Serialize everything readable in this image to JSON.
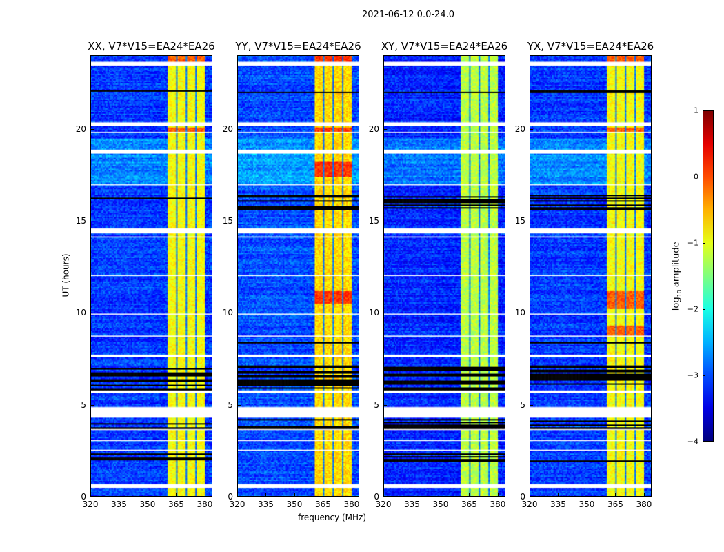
{
  "chart_data": {
    "type": "heatmap",
    "title": "2021-06-12 0.0-24.0",
    "xlabel": "frequency (MHz)",
    "ylabel": "UT (hours)",
    "xlim": [
      320,
      384
    ],
    "ylim": [
      0,
      24
    ],
    "xticks": [
      320,
      335,
      350,
      365,
      380
    ],
    "yticks": [
      0,
      5,
      10,
      15,
      20
    ],
    "colorbar": {
      "label_main": "log",
      "label_sub": "10",
      "label_rest": " amplitude",
      "range": [
        -4,
        1
      ],
      "ticks": [
        1,
        0,
        -1,
        -2,
        -3,
        -4
      ],
      "colormap": "jet"
    },
    "panels": [
      {
        "title": "XX, V7*V15=EA24*EA26",
        "background_log_amp": -3.1,
        "band_log_amp": -0.9,
        "hot_rows": [
          [
            19.9,
            20.1
          ],
          [
            23.6,
            24
          ]
        ]
      },
      {
        "title": "YY, V7*V15=EA24*EA26",
        "background_log_amp": -3.0,
        "band_log_amp": -0.7,
        "hot_rows": [
          [
            19.9,
            20.1
          ],
          [
            10.5,
            11.2
          ],
          [
            17.4,
            18.2
          ],
          [
            23.6,
            24
          ]
        ]
      },
      {
        "title": "XY, V7*V15=EA24*EA26",
        "background_log_amp": -3.2,
        "band_log_amp": -1.2,
        "hot_rows": []
      },
      {
        "title": "YX, V7*V15=EA24*EA26",
        "background_log_amp": -3.1,
        "band_log_amp": -0.9,
        "hot_rows": [
          [
            19.9,
            20.1
          ],
          [
            10.2,
            11.2
          ],
          [
            8.8,
            9.3
          ],
          [
            23.6,
            24
          ]
        ]
      }
    ],
    "band_MHz": [
      360.5,
      380
    ],
    "band_gaps_MHz": [
      365.5,
      370.6,
      375.6
    ],
    "flagged_hours": [
      [
        23.45,
        23.7
      ],
      [
        22.55,
        22.6
      ],
      [
        20.2,
        20.4
      ],
      [
        19.78,
        19.85
      ],
      [
        18.7,
        18.9
      ],
      [
        17.6,
        17.65
      ],
      [
        16.95,
        17.0
      ],
      [
        14.35,
        14.6
      ],
      [
        14.1,
        14.15
      ],
      [
        13.2,
        13.23
      ],
      [
        12.0,
        12.1
      ],
      [
        9.9,
        10.0
      ],
      [
        8.7,
        8.78
      ],
      [
        7.6,
        7.7
      ],
      [
        7.25,
        7.3
      ],
      [
        5.6,
        5.75
      ],
      [
        4.3,
        4.9
      ],
      [
        3.6,
        3.65
      ],
      [
        3.0,
        3.1
      ],
      [
        2.45,
        2.55
      ],
      [
        1.7,
        1.74
      ],
      [
        0.45,
        0.65
      ]
    ],
    "dark_rows_hours": [
      [
        5.8,
        7.1
      ],
      [
        3.7,
        4.2
      ],
      [
        1.9,
        2.3
      ],
      [
        8.3,
        8.5
      ],
      [
        15.6,
        16.4
      ],
      [
        22.0,
        22.1
      ]
    ]
  }
}
